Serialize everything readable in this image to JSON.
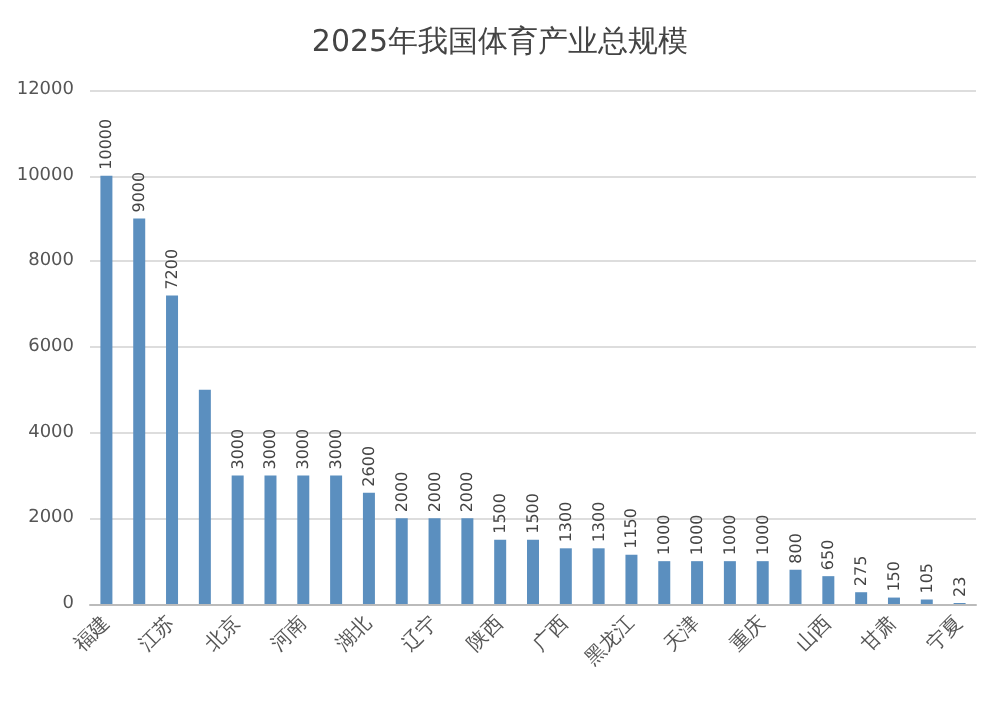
{
  "chart_data": {
    "type": "bar",
    "title": "2025年我国体育产业总规模",
    "categories": [
      "福建",
      null,
      "江苏",
      null,
      "北京",
      null,
      "河南",
      null,
      "湖北",
      null,
      "辽宁",
      null,
      "陕西",
      null,
      "广西",
      null,
      "黑龙江",
      null,
      "天津",
      null,
      "重庆",
      null,
      "山西",
      null,
      "甘肃",
      null,
      "宁夏"
    ],
    "values": [
      10000,
      9000,
      7200,
      5000,
      3000,
      3000,
      3000,
      3000,
      2600,
      2000,
      2000,
      2000,
      1500,
      1500,
      1300,
      1300,
      1150,
      1000,
      1000,
      1000,
      1000,
      800,
      650,
      275,
      150,
      105,
      23
    ],
    "value_labels": [
      "10000",
      "9000",
      "7200",
      null,
      "3000",
      "3000",
      "3000",
      "3000",
      "2600",
      "2000",
      "2000",
      "2000",
      "1500",
      "1500",
      "1300",
      "1300",
      "1150",
      "1000",
      "1000",
      "1000",
      "1000",
      "800",
      "650",
      "275",
      "150",
      "105",
      "23"
    ],
    "color": "#5b8fbf",
    "ylim": [
      0,
      12000
    ],
    "yticks": [
      0,
      2000,
      4000,
      6000,
      8000,
      10000,
      12000
    ],
    "grid": "y"
  }
}
